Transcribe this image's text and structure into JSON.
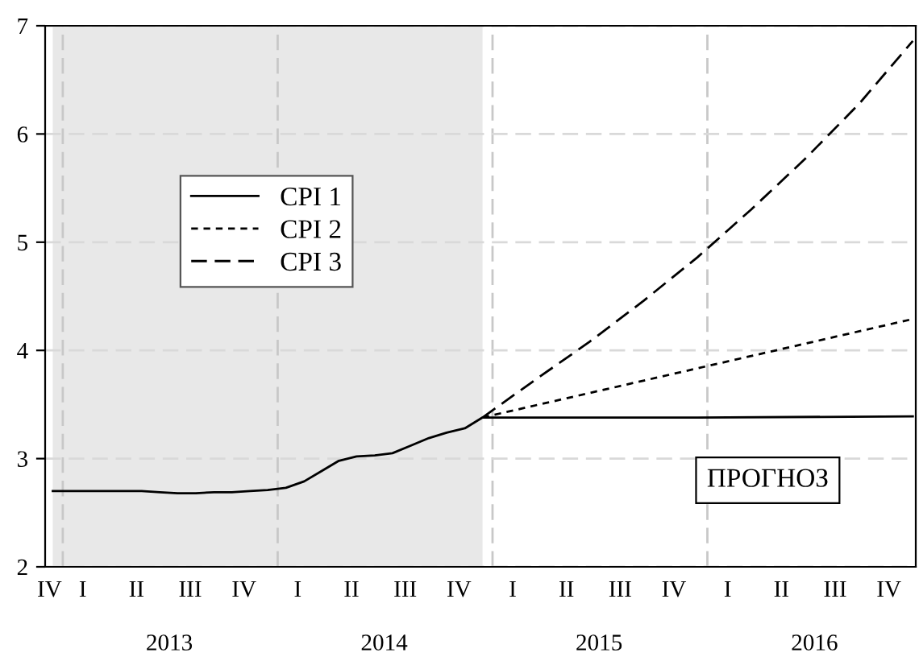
{
  "chart_data": {
    "type": "line",
    "series": [
      {
        "name": "CPI 1",
        "color": "#000000",
        "line_style": "solid",
        "x": [
          "2012-12-15",
          "2013-01-15",
          "2013-02-15",
          "2013-03-15",
          "2013-04-15",
          "2013-05-15",
          "2013-06-15",
          "2013-07-15",
          "2013-08-15",
          "2013-09-15",
          "2013-10-15",
          "2013-11-15",
          "2013-12-15",
          "2014-01-15",
          "2014-02-15",
          "2014-03-15",
          "2014-04-15",
          "2014-05-15",
          "2014-06-15",
          "2014-07-15",
          "2014-08-15",
          "2014-09-15",
          "2014-10-15",
          "2014-11-15",
          "2014-12-15",
          "2015-12-15",
          "2016-12-15"
        ],
        "values": [
          2.7,
          2.7,
          2.7,
          2.7,
          2.7,
          2.7,
          2.69,
          2.68,
          2.68,
          2.69,
          2.69,
          2.7,
          2.71,
          2.73,
          2.79,
          2.88,
          2.98,
          3.02,
          3.03,
          3.05,
          3.12,
          3.19,
          3.24,
          3.28,
          3.38,
          3.38,
          3.39
        ]
      },
      {
        "name": "CPI 2",
        "color": "#000000",
        "line_style": "dotted",
        "x": [
          "2014-12-15",
          "2016-12-15"
        ],
        "values": [
          3.38,
          4.29
        ]
      },
      {
        "name": "CPI 3",
        "color": "#000000",
        "line_style": "dashed",
        "x": [
          "2014-12-15",
          "2015-03-15",
          "2015-06-15",
          "2015-09-15",
          "2015-12-15",
          "2016-03-15",
          "2016-06-15",
          "2016-09-15",
          "2016-12-15"
        ],
        "values": [
          3.38,
          3.73,
          4.08,
          4.46,
          4.86,
          5.3,
          5.77,
          6.28,
          6.86
        ]
      }
    ],
    "xlim": [
      "2012-12-02",
      "2016-12-20"
    ],
    "xticks": [
      {
        "value": "2013-07-01",
        "label": "2013"
      },
      {
        "value": "2014-07-01",
        "label": "2014"
      },
      {
        "value": "2015-07-01",
        "label": "2015"
      },
      {
        "value": "2016-07-01",
        "label": "2016"
      }
    ],
    "ylim": [
      2,
      7
    ],
    "yticks": [
      2,
      3,
      4,
      5,
      6,
      7
    ],
    "grid": "y",
    "ref_lines": [
      {
        "axis": "x",
        "value": "2013-01-01",
        "color": "#c8c8c8",
        "line_style": "dashed"
      },
      {
        "axis": "x",
        "value": "2014-01-01",
        "color": "#c8c8c8",
        "line_style": "dashed"
      },
      {
        "axis": "x",
        "value": "2015-01-01",
        "color": "#c8c8c8",
        "line_style": "dashed"
      },
      {
        "axis": "x",
        "value": "2016-01-01",
        "color": "#c8c8c8",
        "line_style": "dashed"
      }
    ],
    "bands": [
      {
        "axis": "x",
        "from": "2012-12-15",
        "to": "2014-12-15",
        "color": "#e8e8e8"
      }
    ],
    "annotations": [
      "ПРОГНОЗ",
      "IV",
      "I",
      "II",
      "III",
      "IV",
      "I",
      "II",
      "III",
      "IV",
      "I",
      "II",
      "III",
      "IV",
      "I",
      "II",
      "III",
      "IV"
    ],
    "legend": "left"
  }
}
